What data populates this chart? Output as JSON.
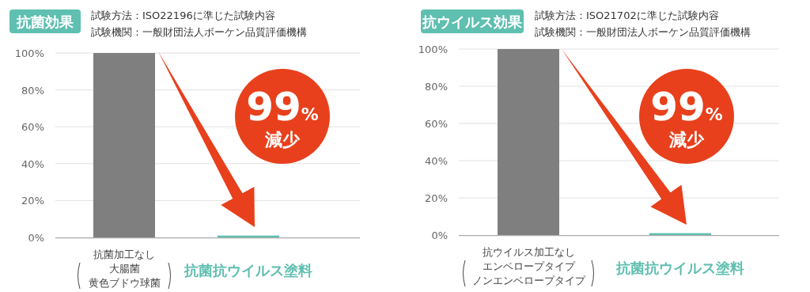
{
  "chart_data": [
    {
      "type": "bar",
      "title": "抗菌効果",
      "subtitle": "試験方法：ISO22196に準じた試験内容",
      "categories": [
        "抗菌加工なし",
        "抗菌抗ウイルス塗料"
      ],
      "values": [
        100,
        1
      ],
      "colors": [
        "#7f7f7f",
        "#5fbfb0"
      ],
      "ylim": [
        0,
        100
      ],
      "yticks": [
        {
          "value": 0,
          "label": "0%"
        },
        {
          "value": 20,
          "label": "20%"
        },
        {
          "value": 40,
          "label": "40%"
        },
        {
          "value": 60,
          "label": "60%"
        },
        {
          "value": 80,
          "label": "80%"
        },
        {
          "value": 100,
          "label": "100%"
        }
      ],
      "grid": "y",
      "annotations": [
        "試験機関：一般財団法人ボーケン品質評価機構",
        "大腸菌",
        "黄色ブドウ球菌",
        "99%減少"
      ]
    },
    {
      "type": "bar",
      "title": "抗ウイルス効果",
      "subtitle": "試験方法：ISO21702に準じた試験内容",
      "categories": [
        "抗ウイルス加工なし",
        "抗菌抗ウイルス塗料"
      ],
      "values": [
        100,
        1
      ],
      "colors": [
        "#7f7f7f",
        "#5fbfb0"
      ],
      "ylim": [
        0,
        100
      ],
      "yticks": [
        {
          "value": 0,
          "label": "0%"
        },
        {
          "value": 20,
          "label": "20%"
        },
        {
          "value": 40,
          "label": "40%"
        },
        {
          "value": 60,
          "label": "60%"
        },
        {
          "value": 80,
          "label": "80%"
        },
        {
          "value": 100,
          "label": "100%"
        }
      ],
      "grid": "y",
      "annotations": [
        "試験機関：一般財団法人ボーケン品質評価機構",
        "エンベロープタイプ",
        "ノンエンベロープタイプ",
        "99%減少"
      ]
    }
  ]
}
